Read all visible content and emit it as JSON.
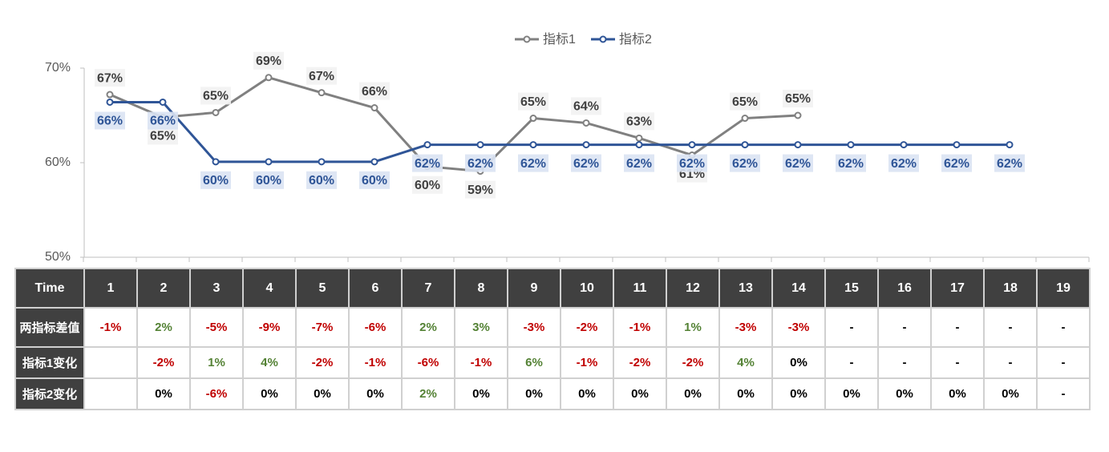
{
  "chart_data": {
    "type": "line",
    "categories": [
      1,
      2,
      3,
      4,
      5,
      6,
      7,
      8,
      9,
      10,
      11,
      12,
      13,
      14,
      15,
      16,
      17,
      18,
      19
    ],
    "series": [
      {
        "name": "指标1",
        "color": "#808080",
        "values": [
          67.2,
          64.8,
          65.3,
          69.0,
          67.4,
          65.8,
          59.6,
          59.1,
          64.7,
          64.2,
          62.6,
          60.8,
          64.7,
          65.0,
          null,
          null,
          null,
          null,
          null
        ],
        "value_labels": [
          "67%",
          "65%",
          "65%",
          "69%",
          "67%",
          "66%",
          "60%",
          "59%",
          "65%",
          "64%",
          "63%",
          "61%",
          "65%",
          "65%",
          null,
          null,
          null,
          null,
          null
        ]
      },
      {
        "name": "指标2",
        "color": "#2f5597",
        "values": [
          66.4,
          66.4,
          60.1,
          60.1,
          60.1,
          60.1,
          61.9,
          61.9,
          61.9,
          61.9,
          61.9,
          61.9,
          61.9,
          61.9,
          61.9,
          61.9,
          61.9,
          61.9,
          null
        ],
        "value_labels": [
          "66%",
          "66%",
          "60%",
          "60%",
          "60%",
          "60%",
          "62%",
          "62%",
          "62%",
          "62%",
          "62%",
          "62%",
          "62%",
          "62%",
          "62%",
          "62%",
          "62%",
          "62%",
          null
        ]
      }
    ],
    "ylim": [
      50,
      70
    ],
    "yticks": [
      {
        "value": 50,
        "label": "50%"
      },
      {
        "value": 60,
        "label": "60%"
      },
      {
        "value": 70,
        "label": "70%"
      }
    ],
    "grid": false,
    "legend": "top",
    "data_table": {
      "header_label": "Time",
      "rows": [
        {
          "label": "两指标差值",
          "cells": [
            "-1%",
            "2%",
            "-5%",
            "-9%",
            "-7%",
            "-6%",
            "2%",
            "3%",
            "-3%",
            "-2%",
            "-1%",
            "1%",
            "-3%",
            "-3%",
            "-",
            "-",
            "-",
            "-",
            "-"
          ]
        },
        {
          "label": "指标1变化",
          "cells": [
            null,
            "-2%",
            "1%",
            "4%",
            "-2%",
            "-1%",
            "-6%",
            "-1%",
            "6%",
            "-1%",
            "-2%",
            "-2%",
            "4%",
            "0%",
            "-",
            "-",
            "-",
            "-",
            "-"
          ]
        },
        {
          "label": "指标2变化",
          "cells": [
            null,
            "0%",
            "-6%",
            "0%",
            "0%",
            "0%",
            "2%",
            "0%",
            "0%",
            "0%",
            "0%",
            "0%",
            "0%",
            "0%",
            "0%",
            "0%",
            "0%",
            "0%",
            "-"
          ]
        }
      ]
    }
  }
}
